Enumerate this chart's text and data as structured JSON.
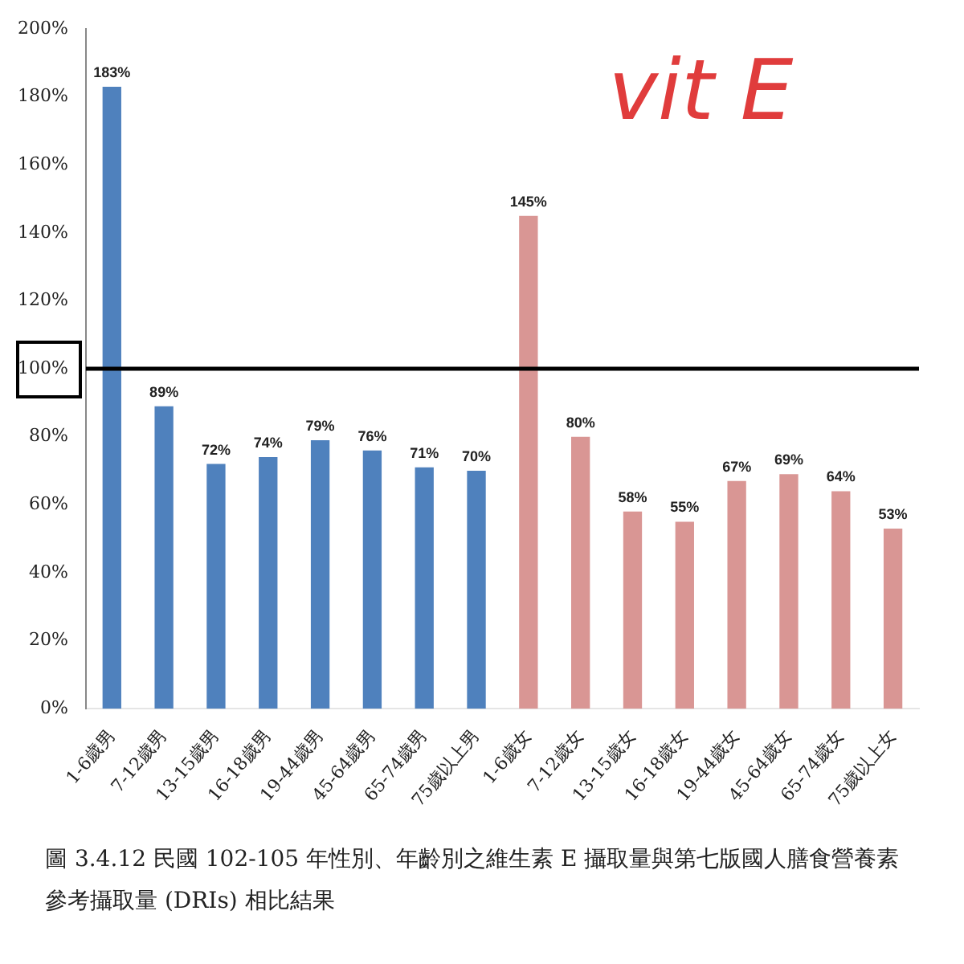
{
  "chart_data": {
    "type": "bar",
    "categories": [
      "1-6歲男",
      "7-12歲男",
      "13-15歲男",
      "16-18歲男",
      "19-44歲男",
      "45-64歲男",
      "65-74歲男",
      "75歲以上男",
      "1-6歲女",
      "7-12歲女",
      "13-15歲女",
      "16-18歲女",
      "19-44歲女",
      "45-64歲女",
      "65-74歲女",
      "75歲以上女"
    ],
    "values": [
      183,
      89,
      72,
      74,
      79,
      76,
      71,
      70,
      145,
      80,
      58,
      55,
      67,
      69,
      64,
      53
    ],
    "colors": [
      "#4f81bd",
      "#4f81bd",
      "#4f81bd",
      "#4f81bd",
      "#4f81bd",
      "#4f81bd",
      "#4f81bd",
      "#4f81bd",
      "#d99694",
      "#d99694",
      "#d99694",
      "#d99694",
      "#d99694",
      "#d99694",
      "#d99694",
      "#d99694"
    ],
    "value_labels": [
      "183%",
      "89%",
      "72%",
      "74%",
      "79%",
      "76%",
      "71%",
      "70%",
      "145%",
      "80%",
      "58%",
      "55%",
      "67%",
      "69%",
      "64%",
      "53%"
    ],
    "ylim": [
      0,
      200
    ],
    "yticks": [
      {
        "value": 0,
        "label": "0%"
      },
      {
        "value": 20,
        "label": "20%"
      },
      {
        "value": 40,
        "label": "40%"
      },
      {
        "value": 60,
        "label": "60%"
      },
      {
        "value": 80,
        "label": "80%"
      },
      {
        "value": 100,
        "label": "100%"
      },
      {
        "value": 120,
        "label": "120%"
      },
      {
        "value": 140,
        "label": "140%"
      },
      {
        "value": 160,
        "label": "160%"
      },
      {
        "value": 180,
        "label": "180%"
      },
      {
        "value": 200,
        "label": "200%"
      }
    ],
    "grid": false,
    "legend": false,
    "ref_lines": [
      {
        "axis": "y",
        "value": 100,
        "color": "#000000"
      }
    ],
    "annotations": [
      "vit E",
      "圖 3.4.12 民國 102-105 年性別、年齡別之維生素 E 攝取量與第七版國人膳食營養素參考攝取量 (DRIs) 相比結果"
    ]
  }
}
